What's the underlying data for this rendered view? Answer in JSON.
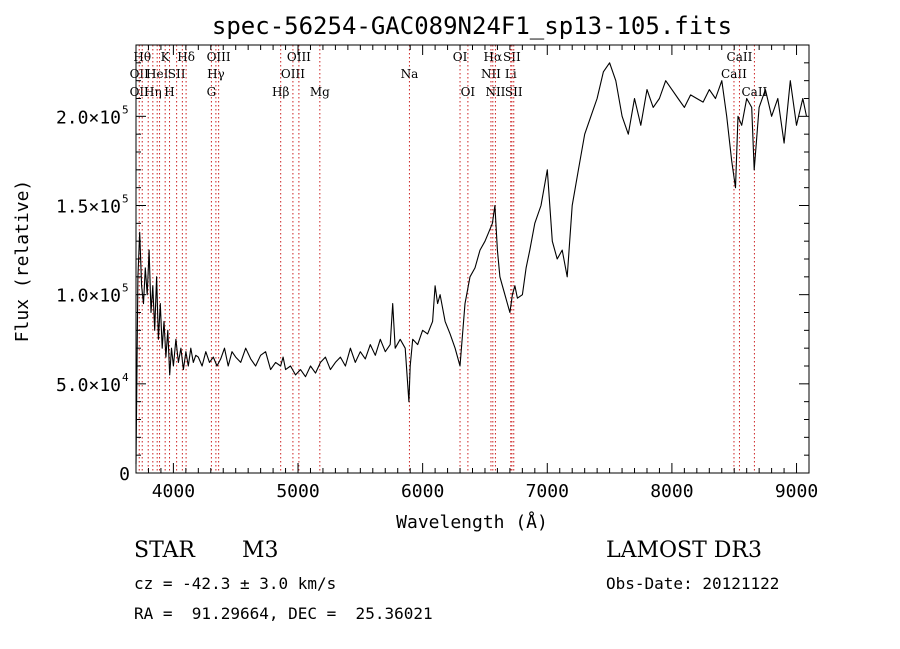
{
  "chart_data": {
    "type": "line",
    "title": "spec-56254-GAC089N24F1_sp13-105.fits",
    "xlabel": "Wavelength (Å)",
    "ylabel": "Flux (relative)",
    "xlim": [
      3700,
      9100
    ],
    "ylim": [
      0,
      240000
    ],
    "x_ticks": [
      {
        "value": 4000,
        "label": "4000"
      },
      {
        "value": 5000,
        "label": "5000"
      },
      {
        "value": 6000,
        "label": "6000"
      },
      {
        "value": 7000,
        "label": "7000"
      },
      {
        "value": 8000,
        "label": "8000"
      },
      {
        "value": 9000,
        "label": "9000"
      }
    ],
    "y_ticks": [
      {
        "value": 0,
        "label": "0",
        "exp": ""
      },
      {
        "value": 50000,
        "label": "5.0×10",
        "exp": "4"
      },
      {
        "value": 100000,
        "label": "1.0×10",
        "exp": "5"
      },
      {
        "value": 150000,
        "label": "1.5×10",
        "exp": "5"
      },
      {
        "value": 200000,
        "label": "2.0×10",
        "exp": "5"
      }
    ],
    "line_color": "#000000",
    "marker_color": "#cc2222",
    "grid": false,
    "series": [
      {
        "x": [
          3700,
          3715,
          3730,
          3745,
          3760,
          3775,
          3790,
          3805,
          3820,
          3835,
          3850,
          3865,
          3880,
          3895,
          3910,
          3925,
          3940,
          3955,
          3970,
          3985,
          4000,
          4020,
          4040,
          4060,
          4080,
          4100,
          4120,
          4140,
          4160,
          4180,
          4200,
          4230,
          4260,
          4290,
          4320,
          4350,
          4380,
          4410,
          4440,
          4470,
          4500,
          4540,
          4580,
          4620,
          4660,
          4700,
          4740,
          4780,
          4820,
          4860,
          4880,
          4900,
          4940,
          4980,
          5020,
          5060,
          5100,
          5140,
          5180,
          5220,
          5260,
          5300,
          5340,
          5380,
          5420,
          5460,
          5500,
          5540,
          5580,
          5620,
          5660,
          5700,
          5740,
          5760,
          5780,
          5820,
          5860,
          5890,
          5900,
          5920,
          5960,
          6000,
          6040,
          6080,
          6100,
          6120,
          6140,
          6180,
          6220,
          6260,
          6300,
          6340,
          6380,
          6420,
          6460,
          6500,
          6530,
          6560,
          6580,
          6600,
          6620,
          6640,
          6660,
          6680,
          6700,
          6720,
          6740,
          6760,
          6800,
          6830,
          6860,
          6900,
          6950,
          7000,
          7040,
          7080,
          7120,
          7160,
          7200,
          7250,
          7300,
          7350,
          7400,
          7450,
          7500,
          7550,
          7600,
          7650,
          7700,
          7750,
          7800,
          7850,
          7900,
          7950,
          8000,
          8050,
          8100,
          8150,
          8200,
          8250,
          8300,
          8350,
          8400,
          8440,
          8480,
          8510,
          8530,
          8560,
          8600,
          8640,
          8660,
          8700,
          8750,
          8800,
          8850,
          8900,
          8950,
          9000,
          9050,
          9080
        ],
        "y": [
          5000,
          110000,
          135000,
          105000,
          95000,
          115000,
          100000,
          125000,
          90000,
          105000,
          80000,
          110000,
          75000,
          95000,
          70000,
          85000,
          65000,
          80000,
          55000,
          70000,
          60000,
          75000,
          62000,
          70000,
          58000,
          68000,
          60000,
          70000,
          62000,
          66000,
          65000,
          60000,
          68000,
          62000,
          65000,
          60000,
          64000,
          70000,
          60000,
          68000,
          65000,
          62000,
          70000,
          64000,
          60000,
          66000,
          68000,
          58000,
          62000,
          60000,
          65000,
          58000,
          60000,
          55000,
          58000,
          54000,
          60000,
          56000,
          62000,
          65000,
          58000,
          62000,
          65000,
          60000,
          70000,
          62000,
          68000,
          64000,
          72000,
          66000,
          75000,
          68000,
          72000,
          95000,
          70000,
          75000,
          70000,
          40000,
          60000,
          75000,
          72000,
          80000,
          78000,
          85000,
          105000,
          95000,
          100000,
          85000,
          78000,
          70000,
          60000,
          95000,
          110000,
          115000,
          125000,
          130000,
          135000,
          140000,
          150000,
          125000,
          110000,
          105000,
          100000,
          95000,
          90000,
          100000,
          105000,
          98000,
          100000,
          115000,
          125000,
          140000,
          150000,
          170000,
          130000,
          120000,
          125000,
          110000,
          150000,
          170000,
          190000,
          200000,
          210000,
          225000,
          230000,
          220000,
          200000,
          190000,
          210000,
          195000,
          215000,
          205000,
          210000,
          220000,
          215000,
          210000,
          205000,
          212000,
          210000,
          208000,
          215000,
          210000,
          220000,
          200000,
          175000,
          160000,
          200000,
          195000,
          210000,
          205000,
          170000,
          205000,
          215000,
          200000,
          210000,
          185000,
          220000,
          195000,
          210000,
          200000
        ],
        "color": "#000000"
      }
    ],
    "markers": [
      {
        "x": 3726,
        "labels": [
          "",
          "OII",
          "OII"
        ]
      },
      {
        "x": 3750,
        "labels": [
          "Hθ",
          "",
          ""
        ]
      },
      {
        "x": 3798,
        "labels": [
          "",
          "",
          ""
        ]
      },
      {
        "x": 3835,
        "labels": [
          "",
          "",
          "Hη"
        ]
      },
      {
        "x": 3870,
        "labels": [
          "",
          "HeI",
          ""
        ]
      },
      {
        "x": 3889,
        "labels": [
          "",
          "",
          ""
        ]
      },
      {
        "x": 3934,
        "labels": [
          "K",
          "",
          ""
        ]
      },
      {
        "x": 3969,
        "labels": [
          "",
          "",
          "H"
        ]
      },
      {
        "x": 4026,
        "labels": [
          "",
          "SII",
          ""
        ]
      },
      {
        "x": 4072,
        "labels": [
          "",
          "",
          ""
        ]
      },
      {
        "x": 4102,
        "labels": [
          "Hδ",
          "",
          ""
        ]
      },
      {
        "x": 4305,
        "labels": [
          "",
          "",
          "G"
        ]
      },
      {
        "x": 4341,
        "labels": [
          "",
          "Hγ",
          ""
        ]
      },
      {
        "x": 4363,
        "labels": [
          "OIII",
          "",
          ""
        ]
      },
      {
        "x": 4861,
        "labels": [
          "",
          "",
          "Hβ"
        ]
      },
      {
        "x": 4959,
        "labels": [
          "",
          "OIII",
          ""
        ]
      },
      {
        "x": 5007,
        "labels": [
          "OIII",
          "",
          ""
        ]
      },
      {
        "x": 5175,
        "labels": [
          "",
          "",
          "Mg"
        ]
      },
      {
        "x": 5894,
        "labels": [
          "",
          "Na",
          ""
        ]
      },
      {
        "x": 6300,
        "labels": [
          "OI",
          "",
          ""
        ]
      },
      {
        "x": 6363,
        "labels": [
          "",
          "",
          "OI"
        ]
      },
      {
        "x": 6548,
        "labels": [
          "",
          "NII",
          ""
        ]
      },
      {
        "x": 6563,
        "labels": [
          "Hα",
          "",
          ""
        ]
      },
      {
        "x": 6584,
        "labels": [
          "",
          "",
          "NII"
        ]
      },
      {
        "x": 6707,
        "labels": [
          "",
          "Li",
          ""
        ]
      },
      {
        "x": 6716,
        "labels": [
          "SII",
          "",
          ""
        ]
      },
      {
        "x": 6731,
        "labels": [
          "",
          "",
          "SII"
        ]
      },
      {
        "x": 8498,
        "labels": [
          "",
          "CaII",
          ""
        ]
      },
      {
        "x": 8542,
        "labels": [
          "CaII",
          "",
          ""
        ]
      },
      {
        "x": 8662,
        "labels": [
          "",
          "",
          "CaII"
        ]
      }
    ]
  },
  "info": {
    "class_label": "STAR",
    "subclass": "M3",
    "cz": "cz = -42.3 ± 3.0 km/s",
    "coords": "RA =  91.29664, DEC =  25.36021",
    "survey": "LAMOST DR3",
    "obs_date": "Obs-Date: 20121122"
  }
}
